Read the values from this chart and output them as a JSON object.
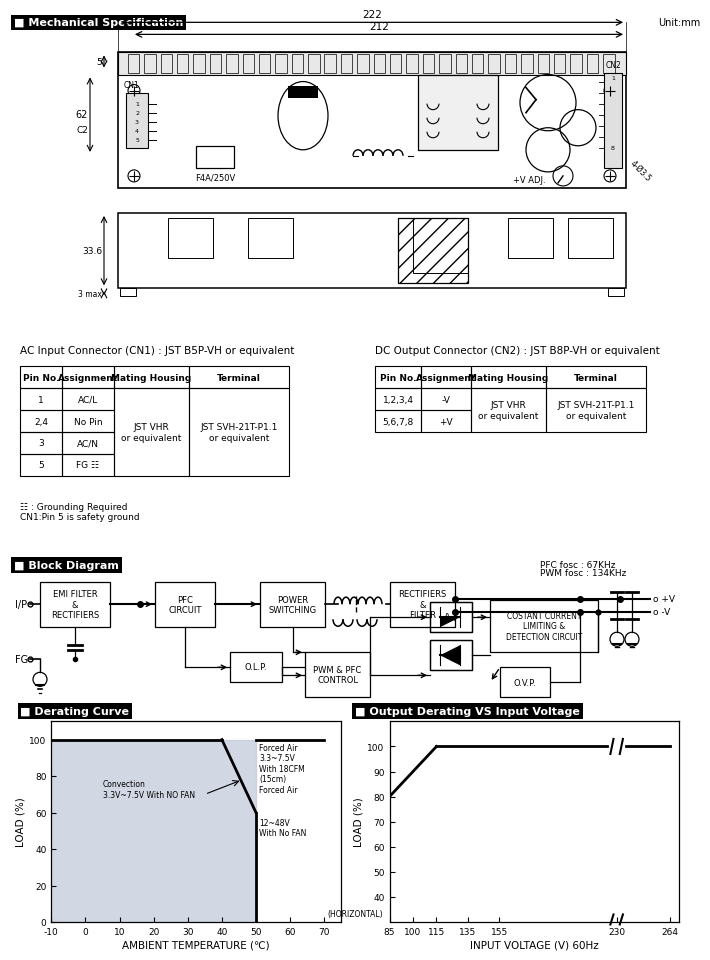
{
  "title_mech": "■ Mechanical Specification",
  "unit": "Unit:mm",
  "dim_222": "222",
  "dim_212": "212",
  "dim_5": "5",
  "dim_5v": "5",
  "dim_62": "62",
  "dim_c2": "C2",
  "dim_336": "33.6",
  "dim_3max": "3 max",
  "dim_4x35": "4-Ø3.5",
  "cn1_label": "CN1",
  "cn2_label": "CN2",
  "fuse_label": "F4A/250V",
  "vadj_label": "+V ADJ.",
  "title_block": "■ Block Diagram",
  "pfc_fosc": "PFC fosc : 67KHz",
  "pwm_fosc": "PWM fosc : 134KHz",
  "ip_label": "I/P",
  "fg_label": "FG",
  "vp_label": "o +V",
  "vm_label": "o -V",
  "ac_title": "AC Input Connector (CN1) : JST B5P-VH or equivalent",
  "dc_title": "DC Output Connector (CN2) : JST B8P-VH or equivalent",
  "ground_note": "☷ : Grounding Required\nCN1:Pin 5 is safety ground",
  "title_derating": "■ Derating Curve",
  "title_output": "■ Output Derating VS Input Voltage",
  "derating_xlabel": "AMBIENT TEMPERATURE (℃)",
  "derating_ylabel": "LOAD (%)",
  "output_xlabel": "INPUT VOLTAGE (V) 60Hz",
  "output_ylabel": "LOAD (%)",
  "bg_color": "#ffffff"
}
